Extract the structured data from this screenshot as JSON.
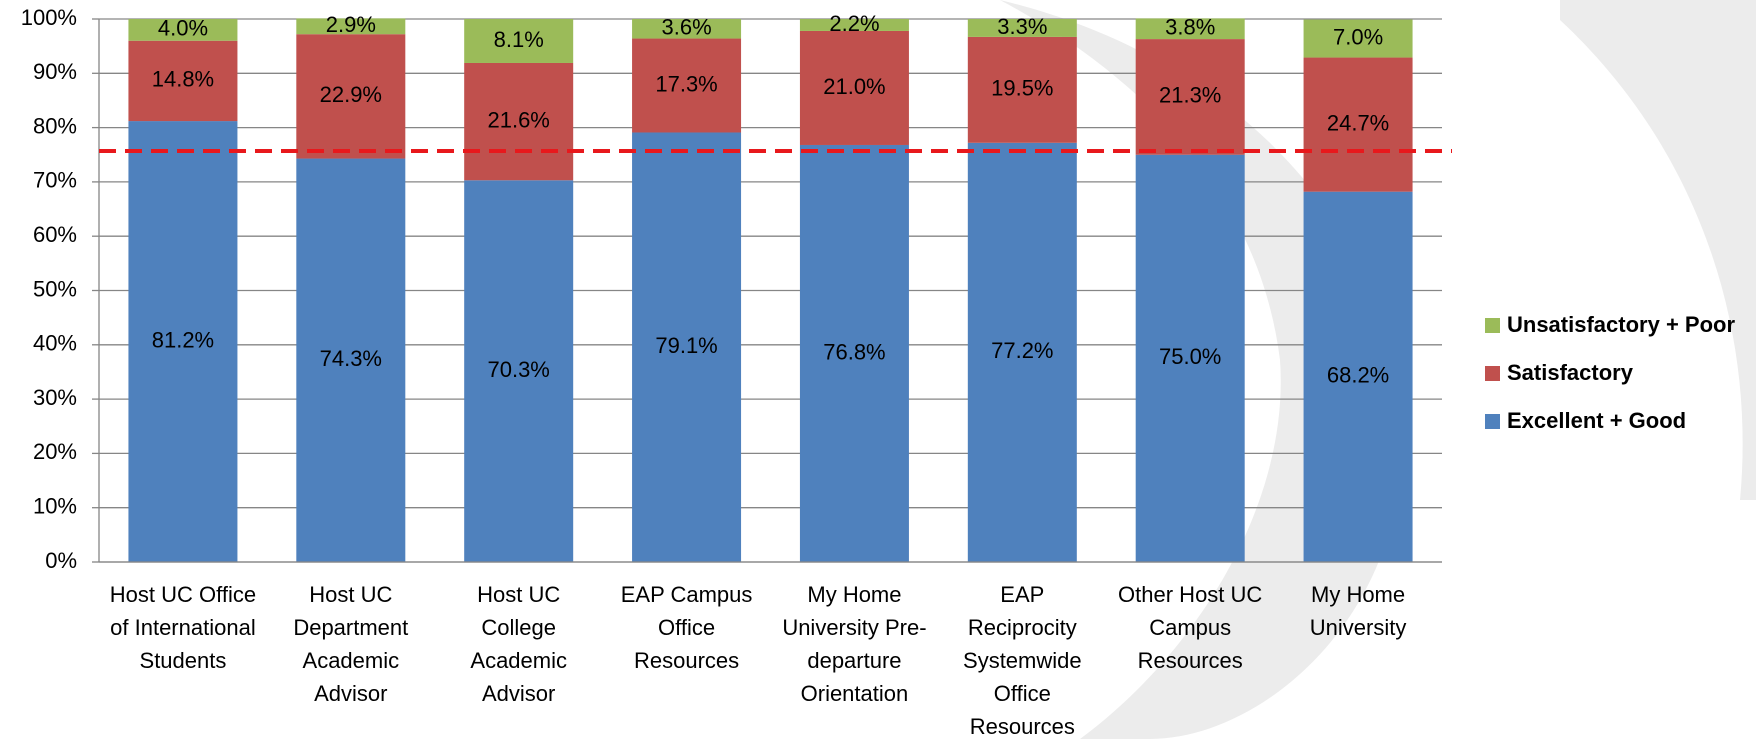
{
  "chart_data": {
    "type": "stacked_bar",
    "categories": [
      "Host UC Office of International Students",
      "Host UC Department Academic Advisor",
      "Host UC College Academic Advisor",
      "EAP Campus Office Resources",
      "My Home University Pre-departure Orientation",
      "EAP Reciprocity Systemwide Office Resources",
      "Other Host UC Campus Resources",
      "My Home University"
    ],
    "series": [
      {
        "name": "Excellent + Good",
        "color": "#4f81bd",
        "values": [
          81.2,
          74.3,
          70.3,
          79.1,
          76.8,
          77.2,
          75.0,
          68.2
        ],
        "value_labels": [
          "81.2%",
          "74.3%",
          "70.3%",
          "79.1%",
          "76.8%",
          "77.2%",
          "75.0%",
          "68.2%"
        ]
      },
      {
        "name": "Satisfactory",
        "color": "#c0504d",
        "values": [
          14.8,
          22.9,
          21.6,
          17.3,
          21.0,
          19.5,
          21.3,
          24.7
        ],
        "value_labels": [
          "14.8%",
          "22.9%",
          "21.6%",
          "17.3%",
          "21.0%",
          "19.5%",
          "21.3%",
          "24.7%"
        ]
      },
      {
        "name": "Unsatisfactory + Poor",
        "color": "#9bbb59",
        "values": [
          4.0,
          2.9,
          8.1,
          3.6,
          2.2,
          3.3,
          3.8,
          7.0
        ],
        "value_labels": [
          "4.0%",
          "2.9%",
          "8.1%",
          "3.6%",
          "2.2%",
          "3.3%",
          "3.8%",
          "7.0%"
        ]
      }
    ],
    "ylim": [
      0,
      100
    ],
    "yticks": [
      {
        "value": 0,
        "label": "0%"
      },
      {
        "value": 10,
        "label": "10%"
      },
      {
        "value": 20,
        "label": "20%"
      },
      {
        "value": 30,
        "label": "30%"
      },
      {
        "value": 40,
        "label": "40%"
      },
      {
        "value": 50,
        "label": "50%"
      },
      {
        "value": 60,
        "label": "60%"
      },
      {
        "value": 70,
        "label": "70%"
      },
      {
        "value": 80,
        "label": "80%"
      },
      {
        "value": 90,
        "label": "90%"
      },
      {
        "value": 100,
        "label": "100%"
      }
    ],
    "grid": true,
    "reference_line": {
      "value": 75.7,
      "color": "#e8181c"
    },
    "legend": "right"
  }
}
